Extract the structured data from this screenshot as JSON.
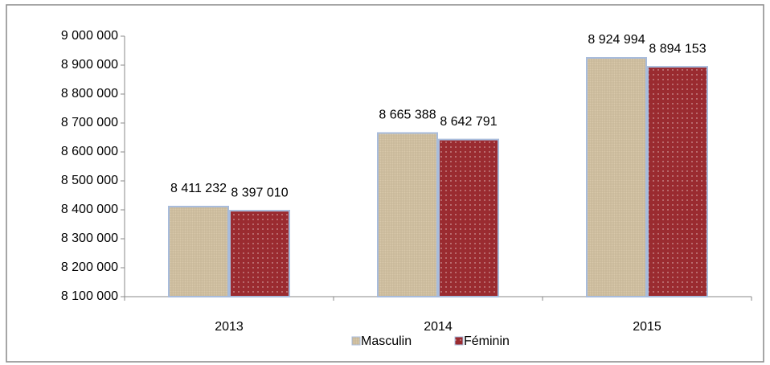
{
  "chart_data": {
    "type": "bar",
    "categories": [
      "2013",
      "2014",
      "2015"
    ],
    "series": [
      {
        "name": "Masculin",
        "color": "#d8c8aa",
        "values": [
          8411232,
          8665388,
          8924994
        ],
        "value_labels": [
          "8 411 232",
          "8 665 388",
          "8 924 994"
        ]
      },
      {
        "name": "Féminin",
        "color": "#9a2b30",
        "values": [
          8397010,
          8642791,
          8894153
        ],
        "value_labels": [
          "8 397 010",
          "8 642 791",
          "8 894 153"
        ]
      }
    ],
    "ylim": [
      8100000,
      9000000
    ],
    "yticks": [
      {
        "value": 8100000,
        "label": "8 100 000"
      },
      {
        "value": 8200000,
        "label": "8 200 000"
      },
      {
        "value": 8300000,
        "label": "8 300 000"
      },
      {
        "value": 8400000,
        "label": "8 400 000"
      },
      {
        "value": 8500000,
        "label": "8 500 000"
      },
      {
        "value": 8600000,
        "label": "8 600 000"
      },
      {
        "value": 8700000,
        "label": "8 700 000"
      },
      {
        "value": 8800000,
        "label": "8 800 000"
      },
      {
        "value": 8900000,
        "label": "8 900 000"
      },
      {
        "value": 9000000,
        "label": "9 000 000"
      }
    ],
    "grid": false,
    "legend": "bottom"
  }
}
